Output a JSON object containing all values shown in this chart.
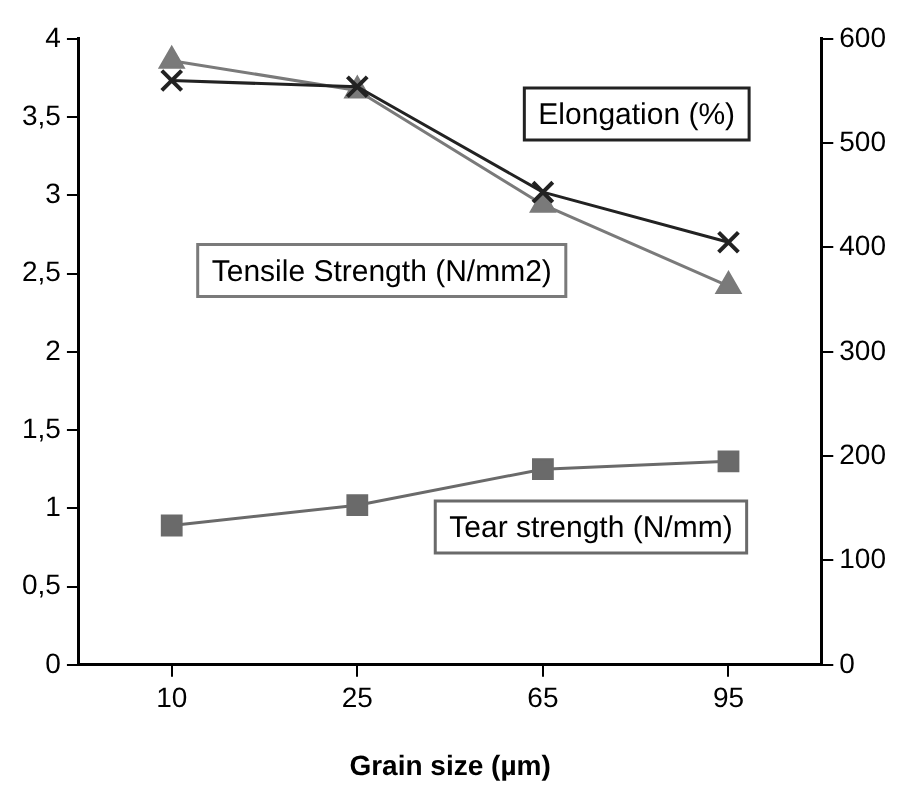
{
  "chart_data": {
    "type": "line",
    "xlabel": "Grain size (µm)",
    "categories": [
      "10",
      "25",
      "65",
      "95"
    ],
    "series": [
      {
        "name": "Tensile Strength (N/mm2)",
        "color": "#7a7a7a",
        "marker": "triangle",
        "values": [
          3.86,
          3.67,
          2.94,
          2.42
        ]
      },
      {
        "name": "Elongation (%)",
        "color": "#222222",
        "marker": "cross",
        "axis": "y2",
        "values": [
          560,
          554,
          453,
          405
        ]
      },
      {
        "name": "Tear strength (N/mm)",
        "color": "#6a6a6a",
        "marker": "square",
        "values": [
          0.89,
          1.02,
          1.25,
          1.3
        ]
      }
    ],
    "ylim": [
      0,
      4
    ],
    "yticks": [
      0,
      {
        "value": 0.5,
        "label": "0,5"
      },
      1,
      {
        "value": 1.5,
        "label": "1,5"
      },
      2,
      {
        "value": 2.5,
        "label": "2,5"
      },
      3,
      {
        "value": 3.5,
        "label": "3,5"
      },
      4
    ],
    "y2lim": [
      0,
      600
    ],
    "y2ticks": [
      0,
      100,
      200,
      300,
      400,
      500,
      600
    ],
    "grid": false,
    "legend": false
  }
}
